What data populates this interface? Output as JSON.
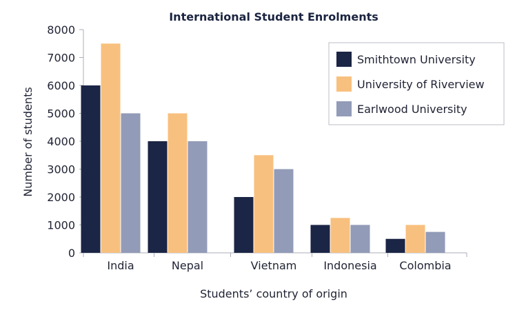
{
  "chart_data": {
    "type": "bar",
    "title": "International Student Enrolments",
    "xlabel": "Students’ country of origin",
    "ylabel": "Number of students",
    "categories": [
      "India",
      "Nepal",
      "Vietnam",
      "Indonesia",
      "Colombia"
    ],
    "ylim": [
      0,
      8000
    ],
    "yticks": [
      0,
      1000,
      2000,
      3000,
      4000,
      5000,
      6000,
      7000,
      8000
    ],
    "grid": false,
    "legend_position": "top-right",
    "series": [
      {
        "name": "Smithtown University",
        "color": "#1b2545",
        "values": [
          6000,
          4000,
          2000,
          1000,
          500
        ]
      },
      {
        "name": "University of Riverview",
        "color": "#f8c07e",
        "values": [
          7500,
          5000,
          3500,
          1250,
          1000
        ]
      },
      {
        "name": "Earlwood University",
        "color": "#929bb7",
        "values": [
          5000,
          4000,
          3000,
          1000,
          750
        ]
      }
    ]
  }
}
